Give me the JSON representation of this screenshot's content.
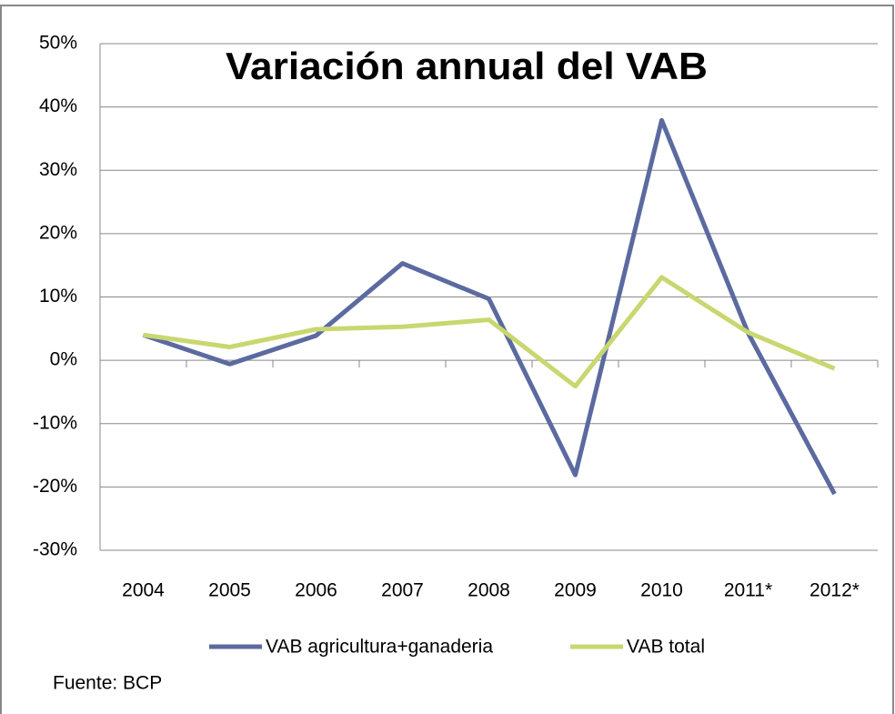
{
  "chart_data": {
    "type": "line",
    "title": "Variación annual del VAB",
    "categories": [
      "2004",
      "2005",
      "2006",
      "2007",
      "2008",
      "2009",
      "2010",
      "2011*",
      "2012*"
    ],
    "series": [
      {
        "name": "VAB agricultura+ganaderia",
        "color": "#5b6a9f",
        "values": [
          4.0,
          -0.6,
          3.9,
          15.3,
          9.7,
          -18.1,
          37.9,
          4.3,
          -21.1
        ]
      },
      {
        "name": "VAB total",
        "color": "#c8d770",
        "values": [
          4.0,
          2.1,
          4.9,
          5.3,
          6.4,
          -4.1,
          13.1,
          4.4,
          -1.3
        ]
      }
    ],
    "ylim": [
      -30,
      50
    ],
    "yticks": [
      {
        "value": -30,
        "label": "-30%"
      },
      {
        "value": -20,
        "label": "-20%"
      },
      {
        "value": -10,
        "label": "-10%"
      },
      {
        "value": 0,
        "label": "0%"
      },
      {
        "value": 10,
        "label": "10%"
      },
      {
        "value": 20,
        "label": "20%"
      },
      {
        "value": 30,
        "label": "30%"
      },
      {
        "value": 40,
        "label": "40%"
      },
      {
        "value": 50,
        "label": "50%"
      }
    ],
    "grid": true,
    "legend": "bottom",
    "source": "Fuente: BCP"
  }
}
